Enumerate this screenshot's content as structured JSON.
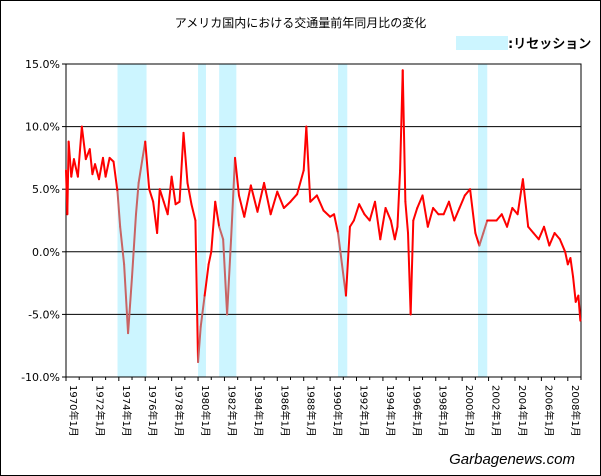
{
  "chart_data": {
    "type": "line",
    "title": "アメリカ国内における交通量前年同月比の変化",
    "ylim": [
      -10,
      15
    ],
    "yticks": [
      "15.0%",
      "10.0%",
      "5.0%",
      "0.0%",
      "-5.0%",
      "-10.0%"
    ],
    "ytick_values": [
      15,
      10,
      5,
      0,
      -5,
      -10
    ],
    "xlim": [
      1970.0,
      2009.0
    ],
    "xticks": [
      "1970年1月",
      "1972年1月",
      "1974年1月",
      "1976年1月",
      "1978年1月",
      "1980年1月",
      "1982年1月",
      "1984年1月",
      "1986年1月",
      "1988年1月",
      "1990年1月",
      "1992年1月",
      "1994年1月",
      "1996年1月",
      "1998年1月",
      "2000年1月",
      "2002年1月",
      "2004年1月",
      "2006年1月",
      "2008年1月"
    ],
    "xtick_values": [
      1970,
      1972,
      1974,
      1976,
      1978,
      1980,
      1982,
      1984,
      1986,
      1988,
      1990,
      1992,
      1994,
      1996,
      1998,
      2000,
      2002,
      2004,
      2006,
      2008
    ],
    "grid": true,
    "legend_placement": "top-right",
    "legend": [
      {
        "label": ":リセッション",
        "color": "#ccf5ff"
      }
    ],
    "recessions": [
      [
        1973.9,
        1976.1
      ],
      [
        1980.0,
        1980.6
      ],
      [
        1981.6,
        1982.9
      ],
      [
        1990.6,
        1991.3
      ],
      [
        2001.2,
        2001.9
      ]
    ],
    "series": [
      {
        "color": "#ff0000",
        "recession_color": "#c86464",
        "x": [
          1970.0,
          1970.1,
          1970.2,
          1970.4,
          1970.6,
          1970.9,
          1971.2,
          1971.5,
          1971.8,
          1972.0,
          1972.2,
          1972.5,
          1972.8,
          1973.0,
          1973.3,
          1973.6,
          1973.9,
          1974.1,
          1974.4,
          1974.7,
          1975.0,
          1975.3,
          1975.5,
          1975.8,
          1976.0,
          1976.3,
          1976.6,
          1976.9,
          1977.1,
          1977.4,
          1977.7,
          1978.0,
          1978.3,
          1978.6,
          1978.9,
          1979.2,
          1979.5,
          1979.8,
          1980.0,
          1980.2,
          1980.5,
          1980.8,
          1981.0,
          1981.3,
          1981.6,
          1981.9,
          1982.2,
          1982.5,
          1982.8,
          1983.1,
          1983.5,
          1984.0,
          1984.5,
          1985.0,
          1985.5,
          1986.0,
          1986.5,
          1987.0,
          1987.5,
          1988.0,
          1988.2,
          1988.5,
          1989.0,
          1989.5,
          1990.0,
          1990.3,
          1990.6,
          1990.9,
          1991.2,
          1991.5,
          1991.8,
          1992.2,
          1992.6,
          1993.0,
          1993.4,
          1993.8,
          1994.2,
          1994.6,
          1994.9,
          1995.1,
          1995.3,
          1995.5,
          1995.7,
          1995.9,
          1996.1,
          1996.3,
          1996.6,
          1997.0,
          1997.4,
          1997.8,
          1998.2,
          1998.6,
          1999.0,
          1999.4,
          1999.8,
          2000.2,
          2000.6,
          2001.0,
          2001.3,
          2001.6,
          2001.9,
          2002.2,
          2002.6,
          2003.0,
          2003.4,
          2003.8,
          2004.2,
          2004.6,
          2005.0,
          2005.4,
          2005.8,
          2006.2,
          2006.6,
          2007.0,
          2007.4,
          2007.8,
          2008.0,
          2008.2,
          2008.4,
          2008.6,
          2008.8,
          2008.95
        ],
        "values": [
          6.5,
          3.0,
          8.8,
          6.0,
          7.4,
          6.0,
          10.0,
          7.4,
          8.2,
          6.2,
          7.0,
          5.8,
          7.5,
          6.0,
          7.5,
          7.2,
          4.8,
          2.0,
          -1.0,
          -6.5,
          -2.0,
          3.0,
          5.5,
          7.5,
          8.8,
          5.0,
          4.0,
          1.5,
          5.0,
          4.0,
          3.0,
          6.0,
          3.8,
          4.0,
          9.5,
          5.5,
          3.8,
          2.5,
          -8.8,
          -6.0,
          -3.5,
          -1.0,
          0.0,
          4.0,
          2.0,
          1.0,
          -5.0,
          1.0,
          7.5,
          4.5,
          2.8,
          5.3,
          3.2,
          5.5,
          3.0,
          4.8,
          3.5,
          4.0,
          4.6,
          6.5,
          10.0,
          4.0,
          4.5,
          3.3,
          2.8,
          3.0,
          1.5,
          -1.0,
          -3.5,
          2.0,
          2.5,
          3.8,
          3.0,
          2.5,
          4.0,
          1.0,
          3.5,
          2.5,
          1.0,
          2.0,
          6.5,
          14.5,
          4.0,
          1.5,
          -5.0,
          2.5,
          3.5,
          4.5,
          2.0,
          3.5,
          3.0,
          3.0,
          4.0,
          2.5,
          3.5,
          4.5,
          5.0,
          1.5,
          0.5,
          1.5,
          2.5,
          2.5,
          2.5,
          3.0,
          2.0,
          3.5,
          3.0,
          5.8,
          2.0,
          1.5,
          1.0,
          2.0,
          0.5,
          1.5,
          1.0,
          0.0,
          -1.0,
          -0.5,
          -2.0,
          -4.0,
          -3.5,
          -5.5
        ]
      }
    ]
  },
  "watermark": "Garbagenews.com"
}
